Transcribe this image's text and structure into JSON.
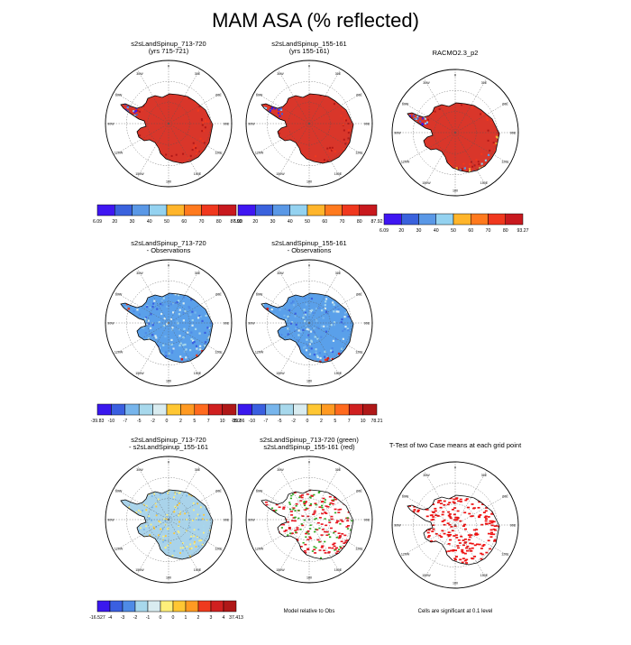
{
  "title": "MAM ASA (% reflected)",
  "lon_labels": [
    "0",
    "30E",
    "60E",
    "90E",
    "120E",
    "150E",
    "180",
    "150W",
    "120W",
    "90W",
    "60W",
    "30W"
  ],
  "palettes": {
    "abs": [
      "#3f16f2",
      "#3a62dd",
      "#5a98e6",
      "#94d2f0",
      "#fff07a",
      "#ffb52b",
      "#ff7a1e",
      "#f0381e",
      "#c8191e"
    ],
    "diff": [
      "#3a18ee",
      "#3a5fe0",
      "#4f8be6",
      "#77b5ec",
      "#a7d8ec",
      "#d9ecf0",
      "#ffef7a",
      "#ffc733",
      "#ff9a22",
      "#ff6a1e",
      "#ee3a1e",
      "#d02020",
      "#b01818"
    ]
  },
  "panels": [
    {
      "id": "r1c1",
      "title": [
        "s2sLandSpinup_713-720",
        "(yrs 715-721)"
      ],
      "fill": "abs",
      "palette": "abs",
      "ticks": [
        "6.09",
        "20",
        "30",
        "40",
        "50",
        "60",
        "70",
        "80",
        "87.92"
      ]
    },
    {
      "id": "r1c2",
      "title": [
        "s2sLandSpinup_155-161",
        "(yrs 155-161)"
      ],
      "fill": "abs",
      "palette": "abs",
      "ticks": [
        "6.09",
        "20",
        "30",
        "40",
        "50",
        "60",
        "70",
        "80",
        "87.92"
      ]
    },
    {
      "id": "r1c3",
      "title": [
        "RACMO2.3_p2"
      ],
      "fill": "abs3",
      "palette": "abs",
      "ticks": [
        "6.09",
        "20",
        "30",
        "40",
        "50",
        "60",
        "70",
        "80",
        "93.27"
      ]
    },
    {
      "id": "r2c1",
      "title": [
        "s2sLandSpinup_713-720",
        "- Observations"
      ],
      "fill": "bias",
      "palette": "diff",
      "ticks": [
        "-39.83",
        "-10",
        "-7",
        "-5",
        "-2",
        "0",
        "2",
        "5",
        "7",
        "10",
        "78.2"
      ]
    },
    {
      "id": "r2c2",
      "title": [
        "s2sLandSpinup_155-161",
        "- Observations"
      ],
      "fill": "bias",
      "palette": "diff",
      "ticks": [
        "-39.86",
        "-10",
        "-7",
        "-5",
        "-2",
        "0",
        "2",
        "5",
        "7",
        "10",
        "78.21"
      ]
    },
    {
      "id": "r3c1",
      "title": [
        "s2sLandSpinup_713-720",
        "- s2sLandSpinup_155-161"
      ],
      "fill": "diffmap",
      "palette": "diff",
      "ticks": [
        "-16.527",
        "-4",
        "-3",
        "-2",
        "-1",
        "0",
        "0",
        "1",
        "2",
        "3",
        "4",
        "37.413"
      ]
    },
    {
      "id": "r3c2",
      "title": [
        "s2sLandSpinup_713-720 (green)",
        "s2sLandSpinup_155-161 (red)"
      ],
      "fill": "rg",
      "palette": null,
      "ticks": []
    },
    {
      "id": "r3c3",
      "title": [
        "T-Test of two Case means at each grid point"
      ],
      "fill": "ttest",
      "palette": null,
      "ticks": []
    }
  ],
  "notes": {
    "model_relative": "Model relative to Obs",
    "significance": "Cells are significant at 0.1 level"
  }
}
